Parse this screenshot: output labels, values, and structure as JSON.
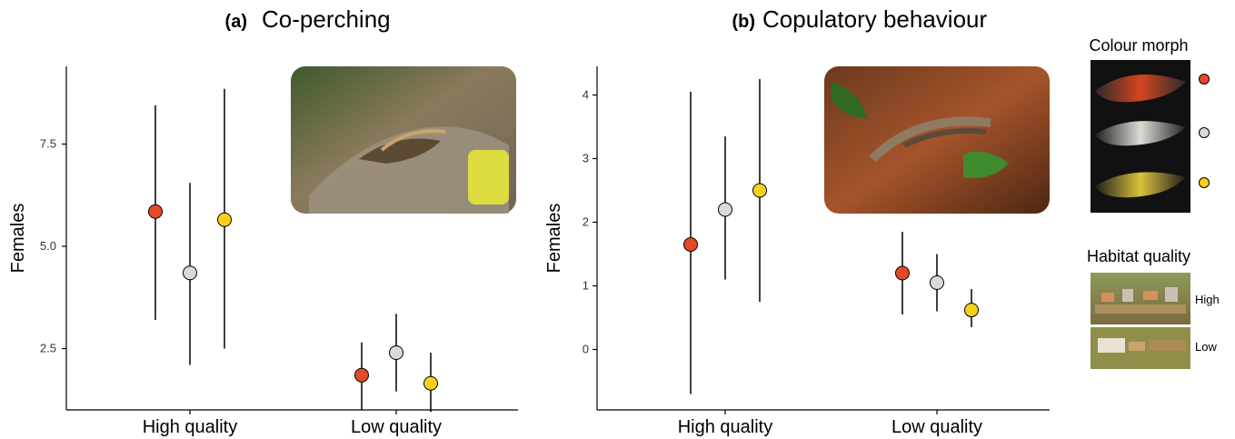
{
  "colors": {
    "red": "#e34a27",
    "grey": "#d9d9d9",
    "yellow": "#f7d117",
    "axis": "#000000",
    "whisker": "#000000"
  },
  "legend": {
    "morph_title": "Colour morph",
    "morph_swatch_colors": [
      "#e34a27",
      "#d9d9d9",
      "#f7d117"
    ],
    "habitat_title": "Habitat quality",
    "habitat_labels": [
      "High",
      "Low"
    ]
  },
  "chart_data": [
    {
      "type": "scatter",
      "panel_letter": "(a)",
      "title": "Co-perching",
      "xlabel": "",
      "ylabel": "Females",
      "categories": [
        "High quality",
        "Low quality"
      ],
      "ylim": [
        1.0,
        9.4
      ],
      "yticks": [
        2.5,
        5.0,
        7.5
      ],
      "ytick_labels": [
        "2.5",
        "5.0",
        "7.5"
      ],
      "series": [
        {
          "color": "#e34a27",
          "values": [
            5.85,
            1.85
          ],
          "lower": [
            3.2,
            1.0
          ],
          "upper": [
            8.45,
            2.65
          ]
        },
        {
          "color": "#d9d9d9",
          "values": [
            4.35,
            2.4
          ],
          "lower": [
            2.1,
            1.45
          ],
          "upper": [
            6.55,
            3.35
          ]
        },
        {
          "color": "#f7d117",
          "values": [
            5.65,
            1.65
          ],
          "lower": [
            2.5,
            0.95
          ],
          "upper": [
            8.85,
            2.4
          ]
        }
      ]
    },
    {
      "type": "scatter",
      "panel_letter": "(b)",
      "title": "Copulatory behaviour",
      "xlabel": "",
      "ylabel": "Females",
      "categories": [
        "High quality",
        "Low quality"
      ],
      "ylim": [
        -0.95,
        4.45
      ],
      "yticks": [
        0,
        1,
        2,
        3,
        4
      ],
      "ytick_labels": [
        "0",
        "1",
        "2",
        "3",
        "4"
      ],
      "series": [
        {
          "color": "#e34a27",
          "values": [
            1.65,
            1.2
          ],
          "lower": [
            -0.7,
            0.55
          ],
          "upper": [
            4.05,
            1.85
          ]
        },
        {
          "color": "#d9d9d9",
          "values": [
            2.2,
            1.05
          ],
          "lower": [
            1.1,
            0.6
          ],
          "upper": [
            3.35,
            1.5
          ]
        },
        {
          "color": "#f7d117",
          "values": [
            2.5,
            0.62
          ],
          "lower": [
            0.75,
            0.35
          ],
          "upper": [
            4.25,
            0.95
          ]
        }
      ]
    }
  ]
}
